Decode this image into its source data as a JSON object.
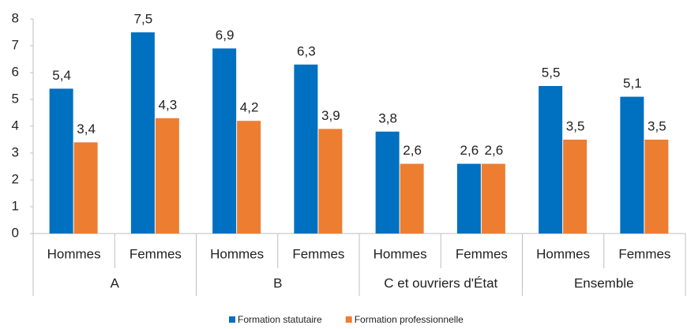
{
  "chart_data": {
    "type": "bar",
    "groups": [
      {
        "name": "A",
        "categories": [
          "Hommes",
          "Femmes"
        ]
      },
      {
        "name": "B",
        "categories": [
          "Hommes",
          "Femmes"
        ]
      },
      {
        "name": "C et ouvriers d'État",
        "categories": [
          "Hommes",
          "Femmes"
        ]
      },
      {
        "name": "Ensemble",
        "categories": [
          "Hommes",
          "Femmes"
        ]
      }
    ],
    "series": [
      {
        "name": "Formation statutaire",
        "color": "#0070c0",
        "values": [
          5.4,
          7.5,
          6.9,
          6.3,
          3.8,
          2.6,
          5.5,
          5.1
        ],
        "value_labels": [
          "5,4",
          "7,5",
          "6,9",
          "6,3",
          "3,8",
          "2,6",
          "5,5",
          "5,1"
        ]
      },
      {
        "name": "Formation professionnelle",
        "color": "#ed7d31",
        "values": [
          3.4,
          4.3,
          4.2,
          3.9,
          2.6,
          2.6,
          3.5,
          3.5
        ],
        "value_labels": [
          "3,4",
          "4,3",
          "4,2",
          "3,9",
          "2,6",
          "2,6",
          "3,5",
          "3,5"
        ]
      }
    ],
    "ylim": [
      0,
      8
    ],
    "yticks": [
      0,
      1,
      2,
      3,
      4,
      5,
      6,
      7,
      8
    ],
    "legend": "bottom"
  }
}
